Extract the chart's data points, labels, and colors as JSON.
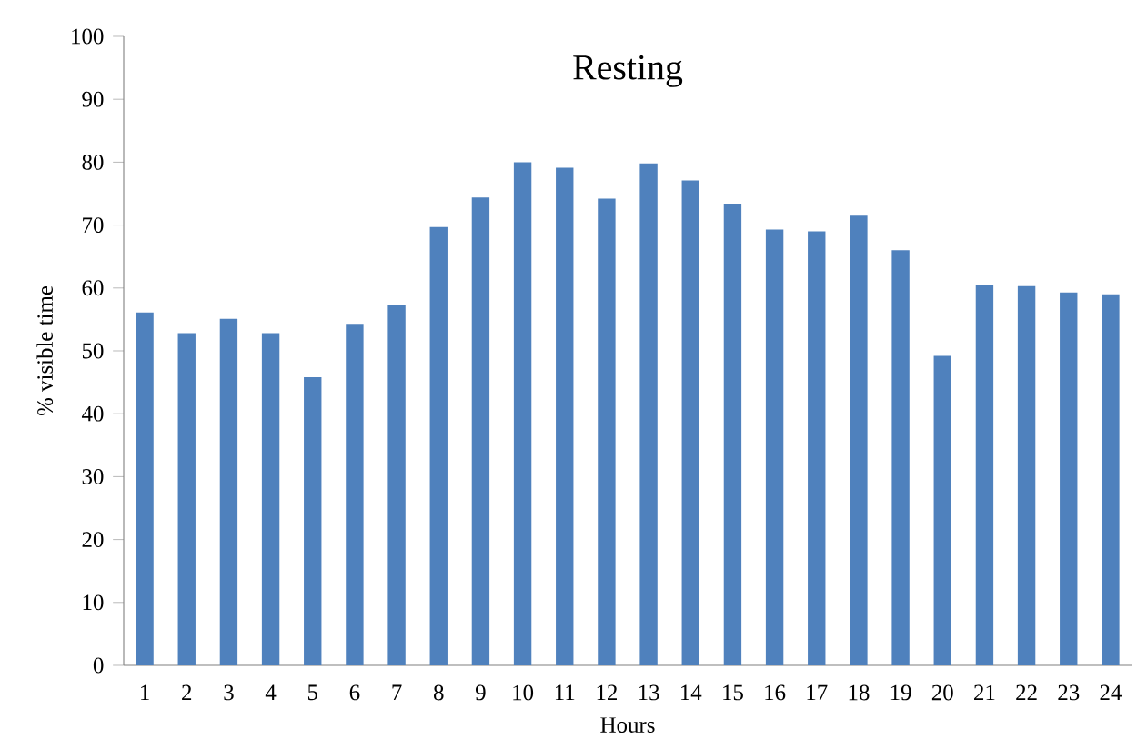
{
  "chart_data": {
    "type": "bar",
    "title": "Resting",
    "xlabel": "Hours",
    "ylabel": "% visible time",
    "categories": [
      "1",
      "2",
      "3",
      "4",
      "5",
      "6",
      "7",
      "8",
      "9",
      "10",
      "11",
      "12",
      "13",
      "14",
      "15",
      "16",
      "17",
      "18",
      "19",
      "20",
      "21",
      "22",
      "23",
      "24"
    ],
    "values": [
      56.1,
      52.8,
      55.1,
      52.8,
      45.8,
      54.3,
      57.3,
      69.7,
      74.4,
      80,
      79.1,
      74.2,
      79.8,
      77.1,
      73.4,
      69.3,
      69,
      71.5,
      66,
      49.2,
      60.5,
      60.3,
      59.3,
      59
    ],
    "color": "#4f81bd",
    "ylim": [
      0,
      100
    ],
    "yticks": [
      0,
      10,
      20,
      30,
      40,
      50,
      60,
      70,
      80,
      90,
      100
    ]
  }
}
